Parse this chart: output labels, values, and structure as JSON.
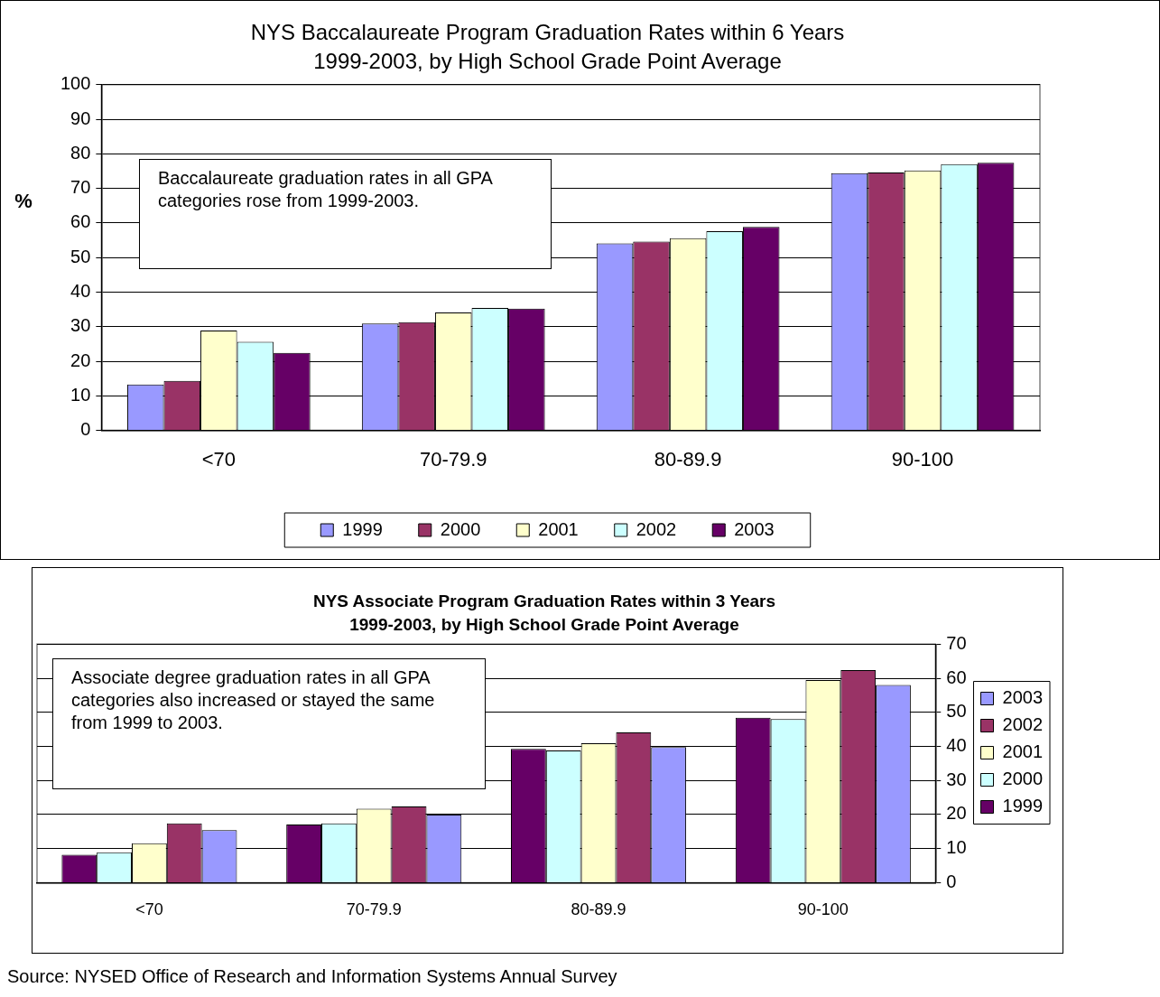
{
  "chart_data": [
    {
      "type": "bar",
      "title": "NYS Baccalaureate Program Graduation Rates within 6 Years\n1999-2003, by High School Grade Point Average",
      "ylabel": "%",
      "categories": [
        "<70",
        "70-79.9",
        "80-89.9",
        "90-100"
      ],
      "series": [
        {
          "name": "1999",
          "color": "#9999ff",
          "values": [
            13.3,
            30.9,
            54.1,
            74.4
          ]
        },
        {
          "name": "2000",
          "color": "#993366",
          "values": [
            14.3,
            31.3,
            54.6,
            74.6
          ]
        },
        {
          "name": "2001",
          "color": "#ffffcc",
          "values": [
            28.9,
            34.1,
            55.6,
            75.2
          ]
        },
        {
          "name": "2002",
          "color": "#ccffff",
          "values": [
            25.6,
            35.4,
            57.6,
            77.0
          ]
        },
        {
          "name": "2003",
          "color": "#660066",
          "values": [
            22.4,
            35.2,
            58.9,
            77.4
          ]
        }
      ],
      "ylim": [
        0,
        100
      ],
      "yticks": [
        0,
        10,
        20,
        30,
        40,
        50,
        60,
        70,
        80,
        90,
        100
      ],
      "grid": "y",
      "legend": "bottom",
      "annotations": [
        "Baccalaureate graduation rates in all GPA categories rose from 1999-2003."
      ]
    },
    {
      "type": "bar",
      "title": "NYS Associate Program Graduation Rates within 3 Years\n1999-2003, by High School Grade Point Average",
      "categories": [
        "<70",
        "70-79.9",
        "80-89.9",
        "90-100"
      ],
      "series": [
        {
          "name": "1999",
          "color": "#660066",
          "axis": "y2",
          "values": [
            8.2,
            17.1,
            39.3,
            48.4
          ]
        },
        {
          "name": "2000",
          "color": "#ccffff",
          "axis": "y2",
          "values": [
            8.9,
            17.4,
            38.8,
            48.0
          ]
        },
        {
          "name": "2001",
          "color": "#ffffcc",
          "axis": "y2",
          "values": [
            11.6,
            21.7,
            40.9,
            59.5
          ]
        },
        {
          "name": "2002",
          "color": "#993366",
          "axis": "y2",
          "values": [
            17.4,
            22.4,
            44.1,
            62.4
          ]
        },
        {
          "name": "2003",
          "color": "#9999ff",
          "axis": "y2",
          "values": [
            15.4,
            20.0,
            39.8,
            58.0
          ]
        }
      ],
      "y2lim": [
        0,
        70
      ],
      "y2ticks": [
        0,
        10,
        20,
        30,
        40,
        50,
        60,
        70
      ],
      "grid": "y",
      "legend": "right",
      "annotations": [
        "Associate degree graduation rates in all GPA categories also increased or stayed the same from 1999 to 2003.",
        "Source: NYSED Office of Research and Information Systems Annual Survey"
      ]
    }
  ]
}
